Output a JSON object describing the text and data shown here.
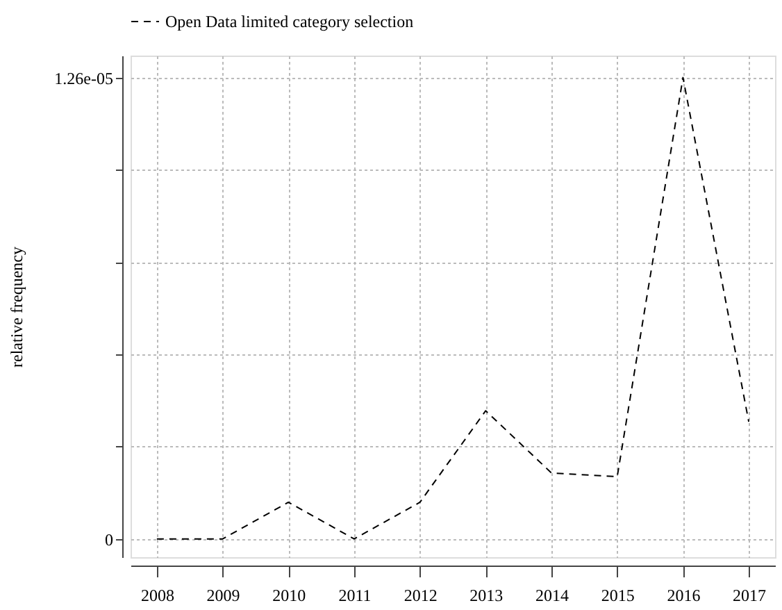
{
  "chart_data": {
    "type": "line",
    "ylabel": "relative frequency",
    "categories": [
      "2008",
      "2009",
      "2010",
      "2011",
      "2012",
      "2013",
      "2014",
      "2015",
      "2016",
      "2017"
    ],
    "series": [
      {
        "name": "Open Data limited category selection",
        "color": "#000000",
        "line_style": "dashed",
        "values": [
          0,
          0,
          1e-06,
          0,
          1e-06,
          3.5e-06,
          1.8e-06,
          1.7e-06,
          1.26e-05,
          3.2e-06
        ]
      }
    ],
    "ylim": [
      -5e-07,
      1.32e-05
    ],
    "yticks": [
      0,
      {
        "value": 2.52e-06,
        "label": null
      },
      {
        "value": 5.04e-06,
        "label": null
      },
      {
        "value": 7.56e-06,
        "label": null
      },
      {
        "value": 1.008e-05,
        "label": null
      },
      {
        "value": 1.26e-05,
        "label": "1.26e-05"
      }
    ],
    "grid": true,
    "legend": "top",
    "marker": "none"
  }
}
